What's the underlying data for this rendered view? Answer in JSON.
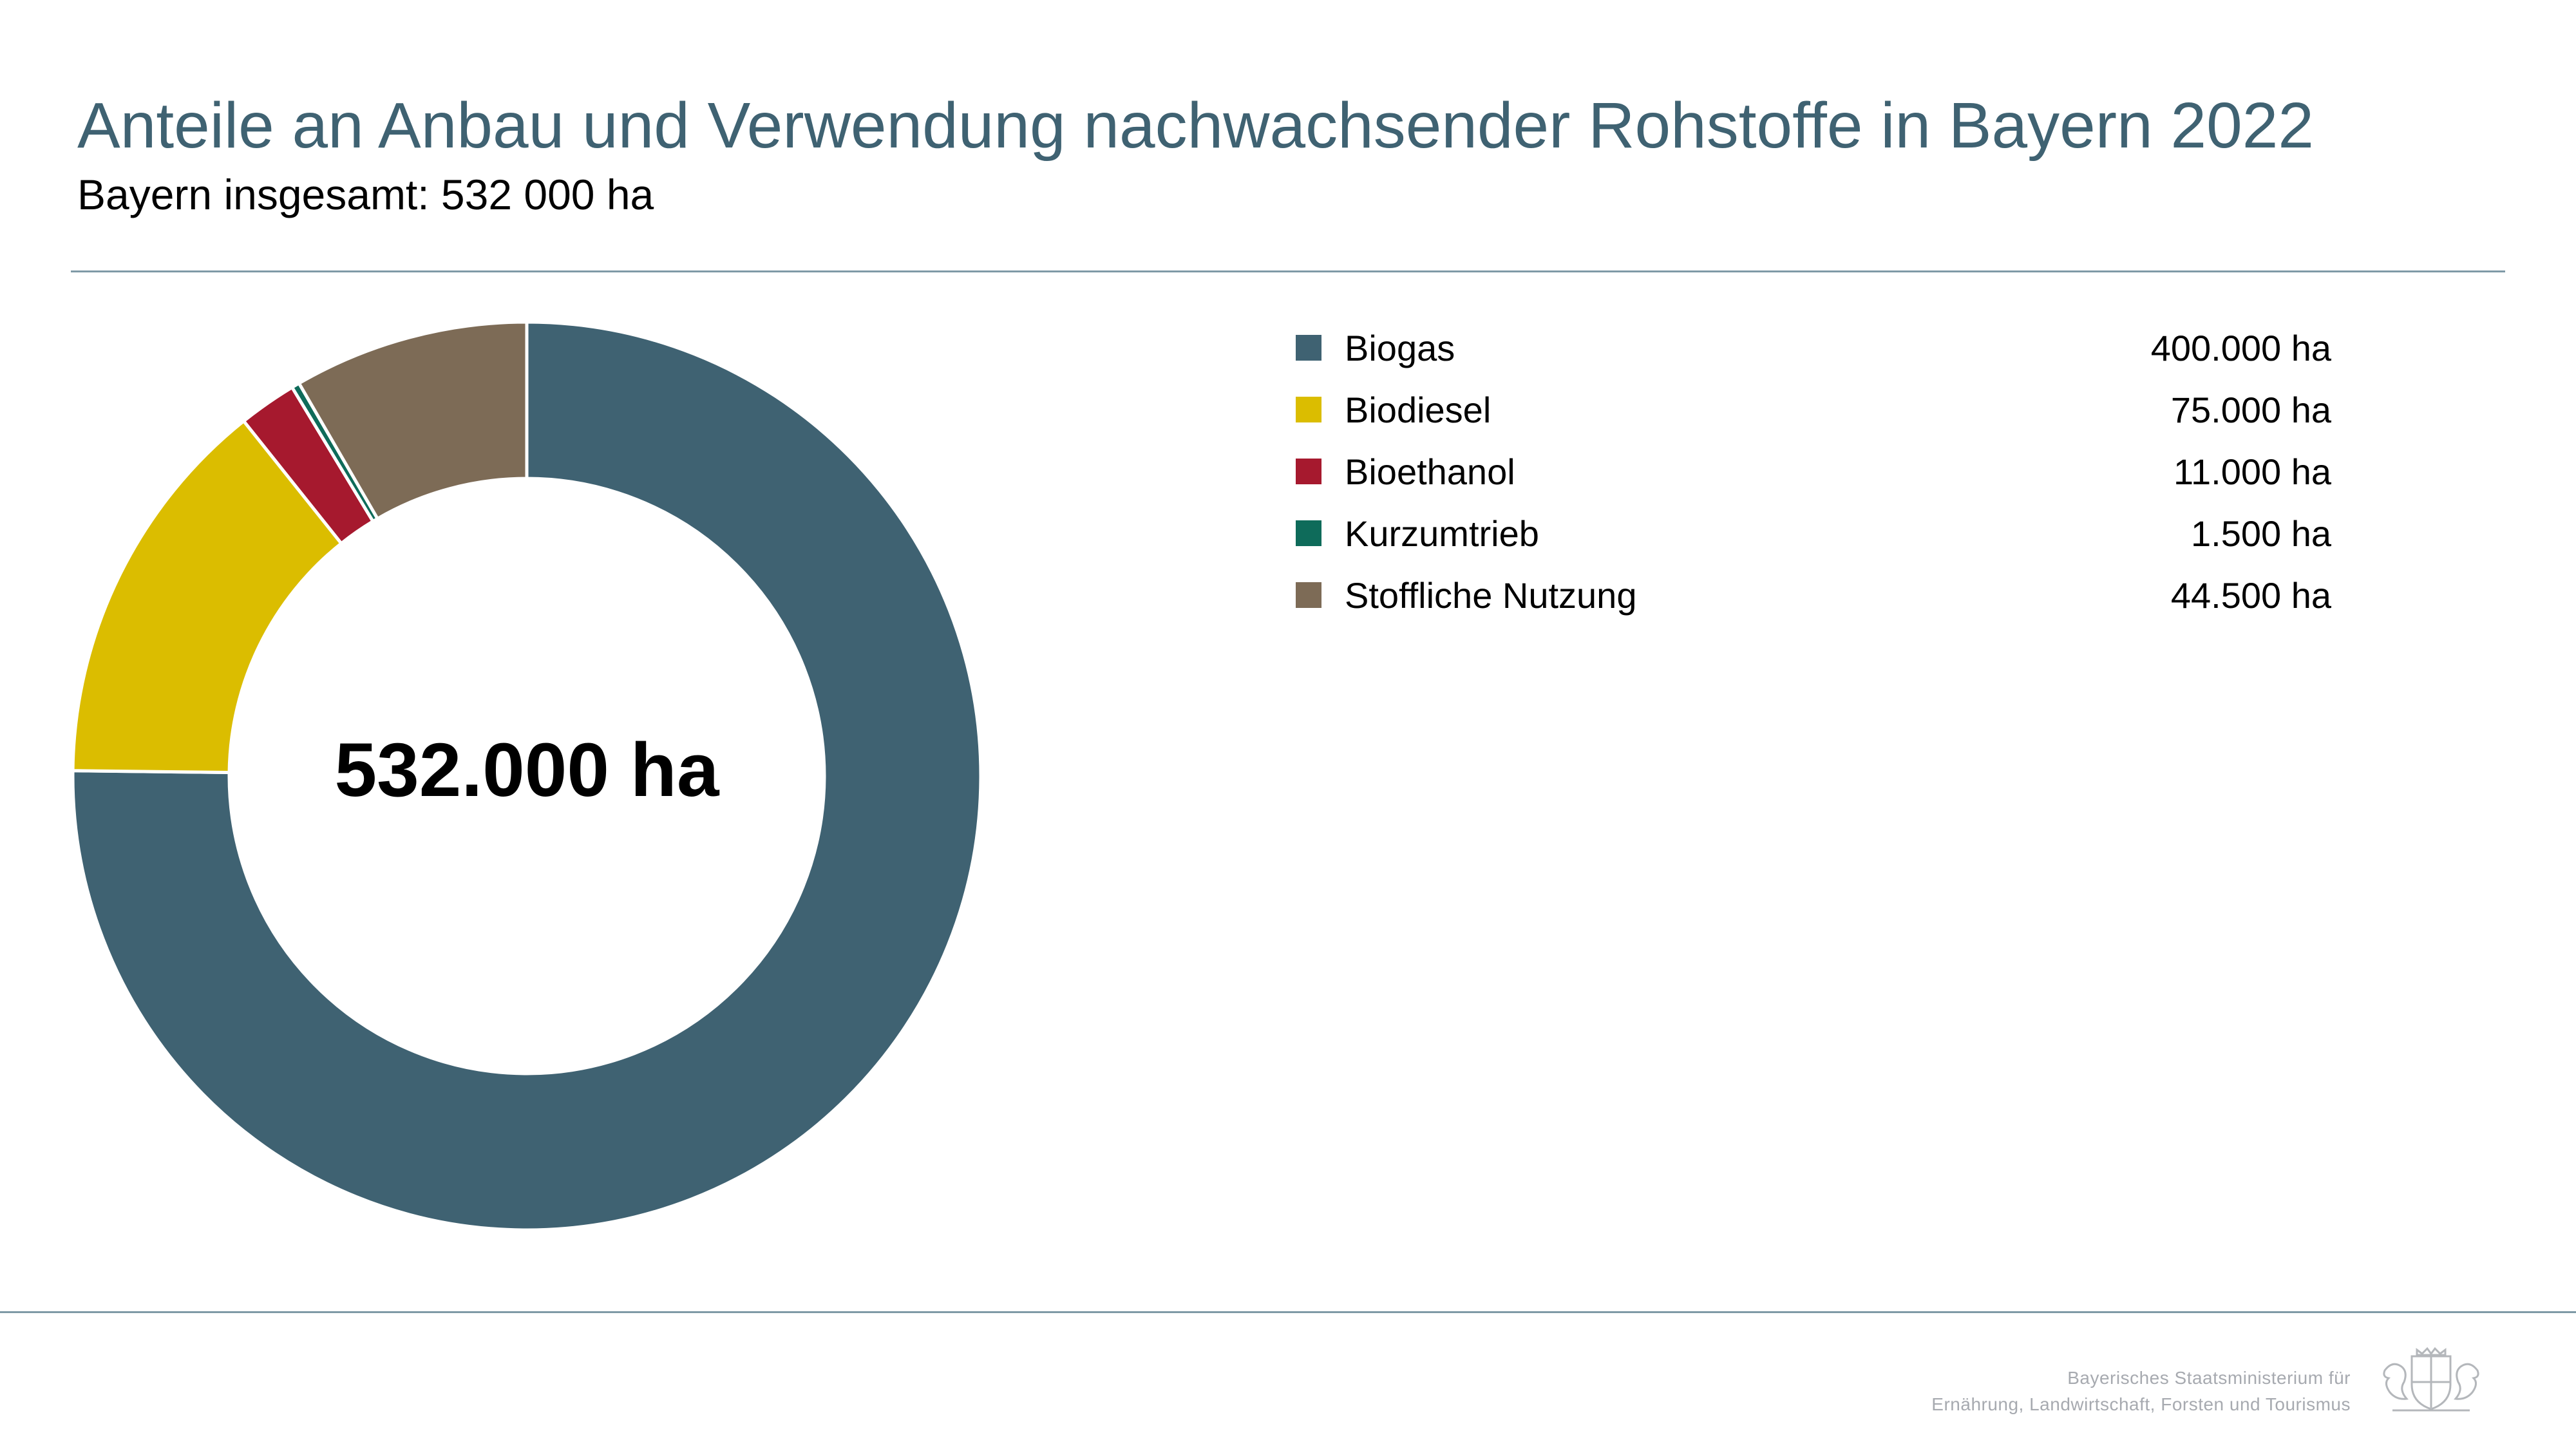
{
  "header": {
    "title": "Anteile an Anbau und Verwendung nachwachsender Rohstoffe in Bayern 2022",
    "subtitle": "Bayern insgesamt: 532 000 ha"
  },
  "chart_data": {
    "type": "pie",
    "donut": true,
    "title": "Anteile an Anbau und Verwendung nachwachsender Rohstoffe in Bayern 2022",
    "subtitle": "Bayern insgesamt: 532 000 ha",
    "center_label": "532.000 ha",
    "unit": "ha",
    "legend_position": "right",
    "categories": [
      "Biogas",
      "Biodiesel",
      "Bioethanol",
      "Kurzumtrieb",
      "Stoffliche Nutzung"
    ],
    "values": [
      400000,
      75000,
      11000,
      1500,
      44500
    ],
    "value_labels": [
      "400.000 ha",
      "75.000 ha",
      "11.000 ha",
      "1.500 ha",
      "44.500 ha"
    ],
    "colors": [
      "#3f6272",
      "#dbbd00",
      "#a6192e",
      "#0e6b5a",
      "#7d6b56"
    ]
  },
  "footer": {
    "ministry_line1": "Bayerisches Staatsministerium für",
    "ministry_line2": "Ernährung, Landwirtschaft, Forsten und Tourismus"
  }
}
